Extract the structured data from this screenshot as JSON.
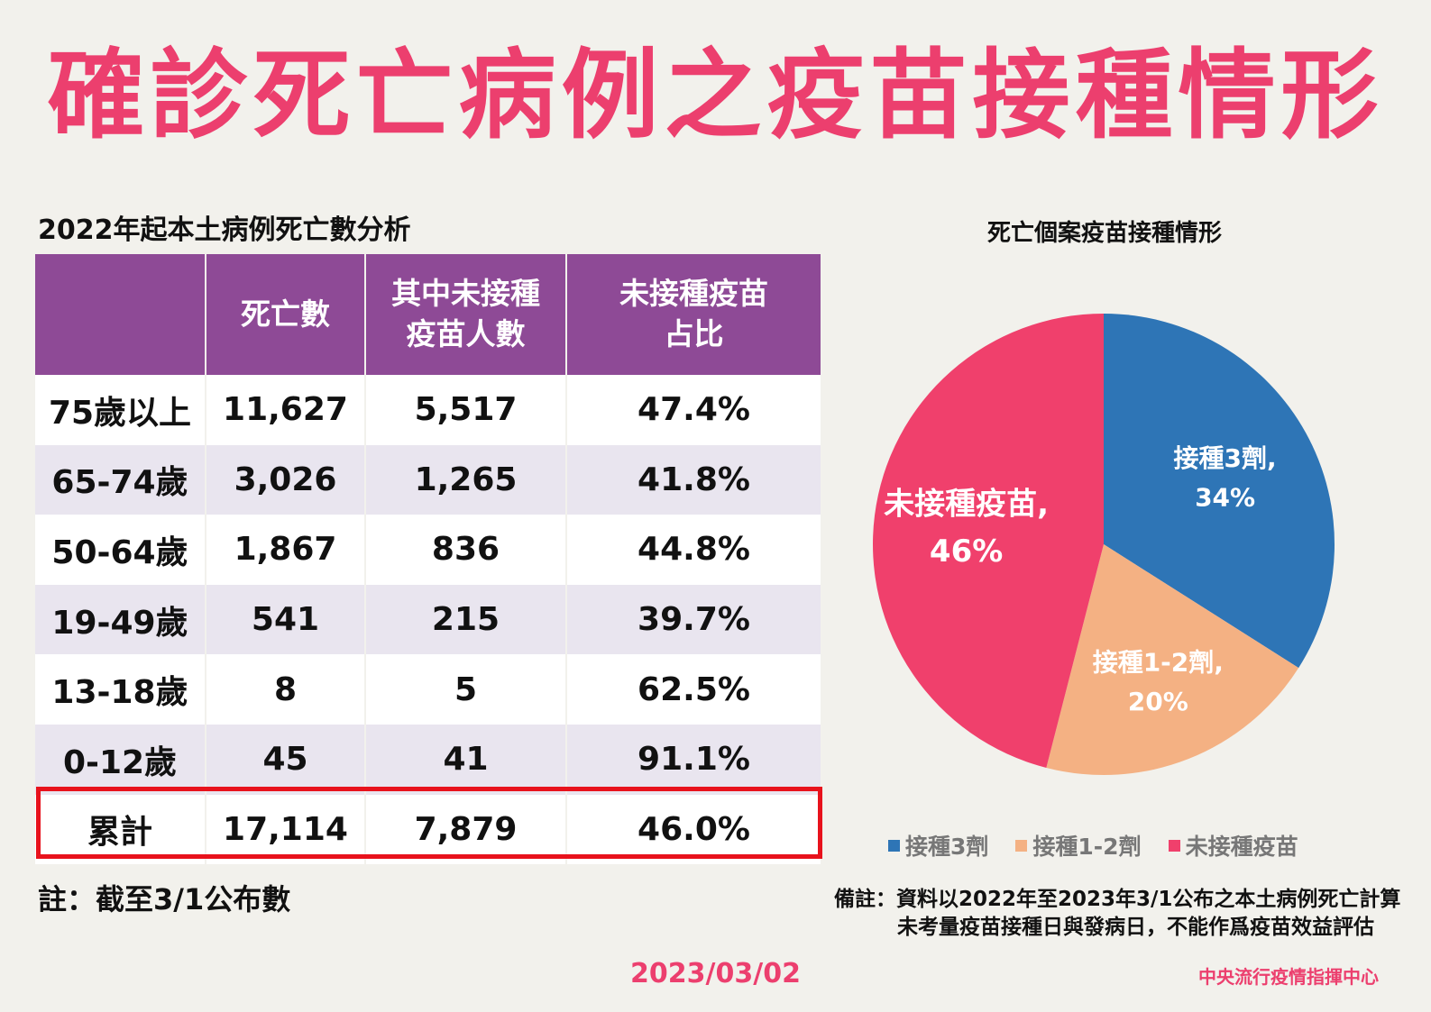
{
  "title": "確診死亡病例之疫苗接種情形",
  "table": {
    "title": "2022年起本土病例死亡數分析",
    "headers": [
      "",
      "死亡數",
      "其中未接種\n疫苗人數",
      "未接種疫苗\n占比"
    ],
    "rows": [
      [
        "75歲以上",
        "11,627",
        "5,517",
        "47.4%"
      ],
      [
        "65-74歲",
        "3,026",
        "1,265",
        "41.8%"
      ],
      [
        "50-64歲",
        "1,867",
        "836",
        "44.8%"
      ],
      [
        "19-49歲",
        "541",
        "215",
        "39.7%"
      ],
      [
        "13-18歲",
        "8",
        "5",
        "62.5%"
      ],
      [
        "0-12歲",
        "45",
        "41",
        "91.1%"
      ]
    ],
    "total": [
      "累計",
      "17,114",
      "7,879",
      "46.0%"
    ],
    "note": "註：截至3/1公布數"
  },
  "chart_data": {
    "type": "pie",
    "title": "死亡個案疫苗接種情形",
    "categories": [
      "接種3劑",
      "接種1-2劑",
      "未接種疫苗"
    ],
    "values": [
      34,
      20,
      46
    ],
    "labels": [
      "接種3劑,\n34%",
      "接種1-2劑,\n20%",
      "未接種疫苗,\n46%"
    ],
    "colors": [
      "#2e75b6",
      "#f4b183",
      "#f0406c"
    ],
    "start_angle_deg": 0,
    "legend_position": "bottom"
  },
  "remark": {
    "line1": "備註：資料以2022年至2023年3/1公布之本土病例死亡計算",
    "line2": "未考量疫苗接種日與發病日，不能作爲疫苗效益評估"
  },
  "footer": {
    "date": "2023/03/02",
    "org": "中央流行疫情指揮中心"
  }
}
